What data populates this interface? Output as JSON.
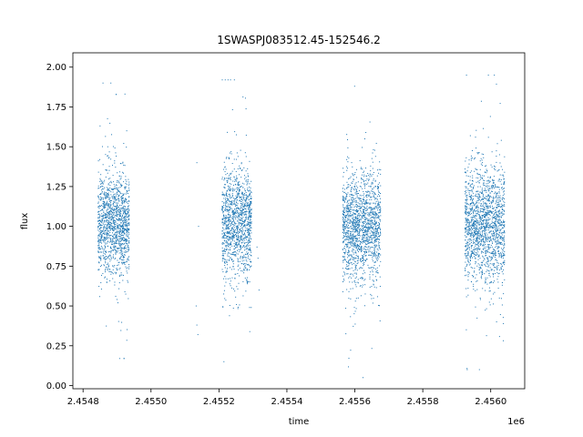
{
  "chart_data": {
    "type": "scatter",
    "title": "1SWASPJ083512.45-152546.2",
    "xlabel": "time",
    "ylabel": "flux",
    "x_offset_label": "1e6",
    "xlim": [
      2454770,
      2456100
    ],
    "ylim": [
      -0.02,
      2.09
    ],
    "x_ticks": [
      2454800,
      2455000,
      2455200,
      2455400,
      2455600,
      2455800,
      2456000
    ],
    "x_tick_labels": [
      "2.4548",
      "2.4550",
      "2.4552",
      "2.4554",
      "2.4556",
      "2.4558",
      "2.4560"
    ],
    "y_ticks": [
      0.0,
      0.25,
      0.5,
      0.75,
      1.0,
      1.25,
      1.5,
      1.75,
      2.0
    ],
    "y_tick_labels": [
      "0.00",
      "0.25",
      "0.50",
      "0.75",
      "1.00",
      "1.25",
      "1.50",
      "1.75",
      "2.00"
    ],
    "grid": false,
    "marker_color": "#1f77b4",
    "series": [
      {
        "seasons": [
          {
            "x_range": [
              2454845,
              2454935
            ],
            "center": 1.02,
            "spread": 0.16,
            "count": 1400,
            "y_min": 0.17,
            "y_max": 1.9
          },
          {
            "x_range": [
              2455210,
              2455295
            ],
            "center": 1.02,
            "spread": 0.17,
            "count": 1300,
            "y_min": 0.08,
            "y_max": 1.92
          },
          {
            "x_range": [
              2455565,
              2455675
            ],
            "center": 1.0,
            "spread": 0.17,
            "count": 1600,
            "y_min": 0.05,
            "y_max": 1.88
          },
          {
            "x_range": [
              2455925,
              2456040
            ],
            "center": 1.01,
            "spread": 0.18,
            "count": 1700,
            "y_min": 0.1,
            "y_max": 1.95
          }
        ],
        "isolated_points": [
          {
            "x": 2455135,
            "y": 1.4
          },
          {
            "x": 2455140,
            "y": 1.0
          },
          {
            "x": 2455135,
            "y": 0.38
          },
          {
            "x": 2455138,
            "y": 0.32
          },
          {
            "x": 2455133,
            "y": 0.5
          },
          {
            "x": 2455312,
            "y": 0.87
          },
          {
            "x": 2455318,
            "y": 0.6
          },
          {
            "x": 2455315,
            "y": 0.8
          }
        ]
      }
    ]
  }
}
